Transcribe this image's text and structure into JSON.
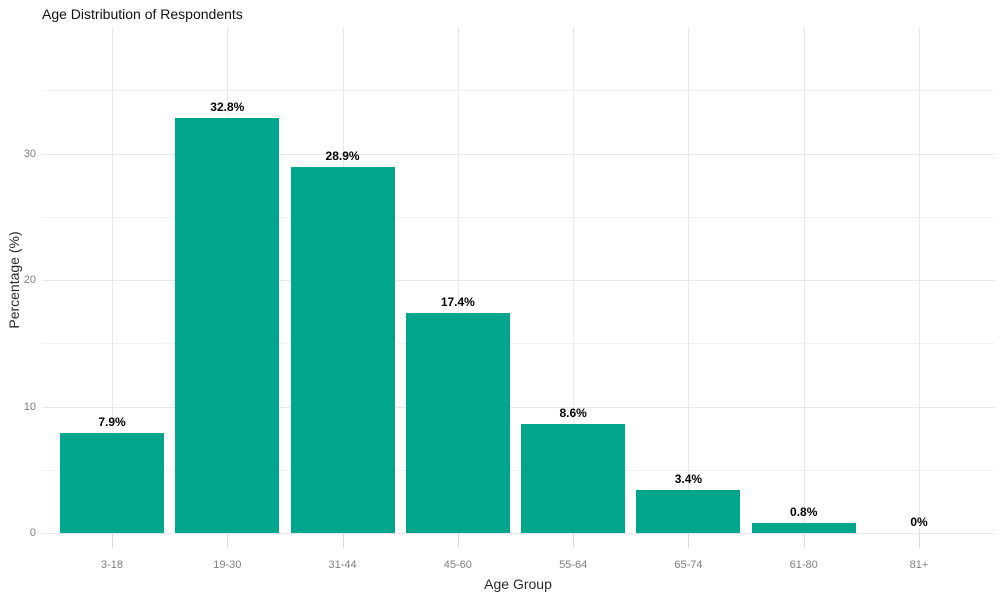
{
  "chart_data": {
    "type": "bar",
    "title": "Age Distribution of Respondents",
    "xlabel": "Age Group",
    "ylabel": "Percentage (%)",
    "categories": [
      "3-18",
      "19-30",
      "31-44",
      "45-60",
      "55-64",
      "65-74",
      "61-80",
      "81+"
    ],
    "values": [
      7.9,
      32.8,
      28.9,
      17.4,
      8.6,
      3.4,
      0.8,
      0
    ],
    "value_labels": [
      "7.9%",
      "32.8%",
      "28.9%",
      "17.4%",
      "8.6%",
      "3.4%",
      "0.8%",
      "0%"
    ],
    "ylim": [
      0,
      40
    ],
    "yticks_major": [
      0,
      10,
      20,
      30
    ],
    "ytick_labels": [
      "0",
      "10",
      "20",
      "30"
    ],
    "yticks_minor": [
      5,
      15,
      25,
      35
    ],
    "grid": true,
    "legend": "none",
    "colors": {
      "bar": "#00a68c",
      "grid_major": "#e8e8e8",
      "grid_minor": "#f2f2f2",
      "tick_mark": "#d9d9d9",
      "tick_label": "#7f7f7f",
      "axis_title": "#2b2b2b",
      "title": "#111111",
      "value_label": "#000000",
      "background": "#ffffff"
    }
  }
}
